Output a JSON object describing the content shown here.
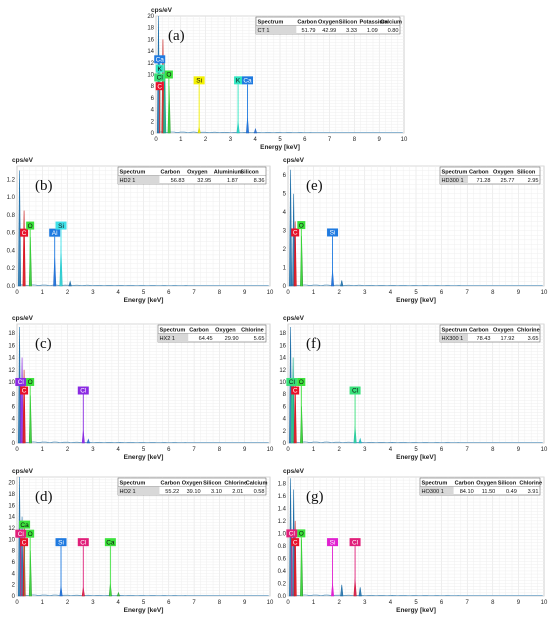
{
  "chart_data": [
    {
      "type": "line",
      "panel_label": "(a)",
      "ylabel": "cps/eV",
      "xlabel": "Energy [keV]",
      "ylim": [
        0,
        20
      ],
      "yticks": [
        "20",
        "18",
        "16",
        "14",
        "12",
        "10",
        "8",
        "6",
        "4",
        "2",
        "0"
      ],
      "xlim": [
        0,
        10
      ],
      "xticks": [
        "0",
        "1",
        "2",
        "3",
        "4",
        "5",
        "6",
        "7",
        "8",
        "9",
        "10"
      ],
      "spectrum_table": {
        "headers": [
          "Spectrum",
          "Carbon",
          "Oxygen",
          "Silicon",
          "Potassium",
          "Calcium"
        ],
        "row": [
          "CT 1",
          "51.79",
          "42.99",
          "3.33",
          "1.09",
          "0.80"
        ]
      },
      "element_labels": [
        {
          "text": "Ca",
          "x": 0.15,
          "y": 12.6,
          "color": "#1f7ae0"
        },
        {
          "text": "K",
          "x": 0.15,
          "y": 11.0,
          "color": "#2ee6c0"
        },
        {
          "text": "Cl",
          "x": 0.15,
          "y": 9.5,
          "color": "#39e07a"
        },
        {
          "text": "C",
          "x": 0.15,
          "y": 8.0,
          "color": "#e8102a"
        },
        {
          "text": "O",
          "x": 0.52,
          "y": 10.0,
          "color": "#3ce13c"
        },
        {
          "text": "Si",
          "x": 1.74,
          "y": 9.0,
          "color": "#f2f000"
        },
        {
          "text": "K",
          "x": 3.31,
          "y": 9.0,
          "color": "#2ee6c0"
        },
        {
          "text": "Ca",
          "x": 3.69,
          "y": 9.0,
          "color": "#1f7ae0"
        }
      ],
      "peaks": [
        {
          "x": 0.1,
          "y": 20.0,
          "color": "#1f6fa8"
        },
        {
          "x": 0.28,
          "y": 16.0,
          "color": "#c22"
        },
        {
          "x": 0.35,
          "y": 12.0,
          "color": "#1a8"
        },
        {
          "x": 0.53,
          "y": 8.0,
          "color": "#3a3"
        },
        {
          "x": 1.74,
          "y": 1.0,
          "color": "#cc0"
        },
        {
          "x": 3.31,
          "y": 2.0,
          "color": "#2bb"
        },
        {
          "x": 3.69,
          "y": 2.6,
          "color": "#2769c9"
        },
        {
          "x": 4.01,
          "y": 0.7,
          "color": "#2769c9"
        }
      ]
    },
    {
      "type": "line",
      "panel_label": "(b)",
      "ylabel": "cps/eV",
      "xlabel": "Energy [keV]",
      "ylim": [
        0,
        1.35
      ],
      "yticks": [
        "1.2",
        "1.0",
        "0.8",
        "0.6",
        "0.4",
        "0.2",
        "0.0"
      ],
      "ytick_values": [
        1.2,
        1.0,
        0.8,
        0.6,
        0.4,
        0.2,
        0.0
      ],
      "xlim": [
        0,
        10
      ],
      "xticks": [
        "0",
        "1",
        "2",
        "3",
        "4",
        "5",
        "6",
        "7",
        "8",
        "9",
        "10"
      ],
      "spectrum_table": {
        "headers": [
          "Spectrum",
          "Carbon",
          "Oxygen",
          "Aluminium",
          "Silicon"
        ],
        "row": [
          "HD2 1",
          "56.83",
          "32.95",
          "1.87",
          "8.36"
        ]
      },
      "element_labels": [
        {
          "text": "C",
          "x": 0.28,
          "y": 0.6,
          "color": "#e8102a"
        },
        {
          "text": "O",
          "x": 0.52,
          "y": 0.68,
          "color": "#3ce13c"
        },
        {
          "text": "Al",
          "x": 1.49,
          "y": 0.6,
          "color": "#1f7ae0"
        },
        {
          "text": "Si",
          "x": 1.74,
          "y": 0.68,
          "color": "#3fe0e8"
        }
      ],
      "peaks": [
        {
          "x": 0.1,
          "y": 1.3,
          "color": "#1f6fa8"
        },
        {
          "x": 0.28,
          "y": 0.85,
          "color": "#c22"
        },
        {
          "x": 0.53,
          "y": 0.55,
          "color": "#3a3"
        },
        {
          "x": 1.49,
          "y": 0.32,
          "color": "#2769c9"
        },
        {
          "x": 1.74,
          "y": 0.45,
          "color": "#2bb"
        },
        {
          "x": 2.1,
          "y": 0.05,
          "color": "#1f6fa8"
        }
      ]
    },
    {
      "type": "line",
      "panel_label": "(e)",
      "ylabel": "cps/eV",
      "xlabel": "Energy [keV]",
      "ylim": [
        0,
        6.5
      ],
      "yticks": [
        "6",
        "5",
        "4",
        "3",
        "2",
        "1",
        "0"
      ],
      "ytick_values": [
        6,
        5,
        4,
        3,
        2,
        1,
        0
      ],
      "xlim": [
        0,
        10
      ],
      "xticks": [
        "0",
        "1",
        "2",
        "3",
        "4",
        "5",
        "6",
        "7",
        "8",
        "9",
        "10"
      ],
      "spectrum_table": {
        "headers": [
          "Spectrum",
          "Carbon",
          "Oxygen",
          "Silicon"
        ],
        "row": [
          "HD300 1",
          "71.28",
          "25.77",
          "2.95"
        ]
      },
      "element_labels": [
        {
          "text": "C",
          "x": 0.28,
          "y": 2.9,
          "color": "#e8102a"
        },
        {
          "text": "O",
          "x": 0.52,
          "y": 3.3,
          "color": "#3ce13c"
        },
        {
          "text": "Si",
          "x": 1.74,
          "y": 2.9,
          "color": "#1f7ae0"
        }
      ],
      "peaks": [
        {
          "x": 0.1,
          "y": 6.3,
          "color": "#1f6fa8"
        },
        {
          "x": 0.22,
          "y": 5.0,
          "color": "#1f6fa8"
        },
        {
          "x": 0.28,
          "y": 3.5,
          "color": "#c22"
        },
        {
          "x": 0.53,
          "y": 2.7,
          "color": "#3a3"
        },
        {
          "x": 1.74,
          "y": 0.85,
          "color": "#2769c9"
        },
        {
          "x": 2.1,
          "y": 0.3,
          "color": "#1f6fa8"
        }
      ]
    },
    {
      "type": "line",
      "panel_label": "(c)",
      "ylabel": "cps/eV",
      "xlabel": "Energy [keV]",
      "ylim": [
        0,
        19.5
      ],
      "yticks": [
        "18",
        "16",
        "14",
        "12",
        "10",
        "8",
        "6",
        "4",
        "2",
        "0"
      ],
      "ytick_values": [
        18,
        16,
        14,
        12,
        10,
        8,
        6,
        4,
        2,
        0
      ],
      "xlim": [
        0,
        10
      ],
      "xticks": [
        "0",
        "1",
        "2",
        "3",
        "4",
        "5",
        "6",
        "7",
        "8",
        "9",
        "10"
      ],
      "spectrum_table": {
        "headers": [
          "Spectrum",
          "Carbon",
          "Oxygen",
          "Chlorine"
        ],
        "row": [
          "HX2 1",
          "64.45",
          "29.90",
          "5.65"
        ]
      },
      "element_labels": [
        {
          "text": "Cl",
          "x": 0.15,
          "y": 10.0,
          "color": "#8a2be2"
        },
        {
          "text": "C",
          "x": 0.28,
          "y": 8.6,
          "color": "#e8102a"
        },
        {
          "text": "O",
          "x": 0.52,
          "y": 10.0,
          "color": "#3ce13c"
        },
        {
          "text": "Cl",
          "x": 2.62,
          "y": 8.6,
          "color": "#8a2be2"
        }
      ],
      "peaks": [
        {
          "x": 0.1,
          "y": 19.0,
          "color": "#1f6fa8"
        },
        {
          "x": 0.2,
          "y": 14.0,
          "color": "#8a2be2"
        },
        {
          "x": 0.28,
          "y": 12.0,
          "color": "#c22"
        },
        {
          "x": 0.53,
          "y": 7.8,
          "color": "#3a3"
        },
        {
          "x": 2.62,
          "y": 2.0,
          "color": "#8a2be2"
        },
        {
          "x": 2.82,
          "y": 0.6,
          "color": "#2769c9"
        }
      ]
    },
    {
      "type": "line",
      "panel_label": "(f)",
      "ylabel": "cps/eV",
      "xlabel": "Energy [keV]",
      "ylim": [
        0,
        19.5
      ],
      "yticks": [
        "18",
        "16",
        "14",
        "12",
        "10",
        "8",
        "6",
        "4",
        "2",
        "0"
      ],
      "ytick_values": [
        18,
        16,
        14,
        12,
        10,
        8,
        6,
        4,
        2,
        0
      ],
      "xlim": [
        0,
        10
      ],
      "xticks": [
        "0",
        "1",
        "2",
        "3",
        "4",
        "5",
        "6",
        "7",
        "8",
        "9",
        "10"
      ],
      "spectrum_table": {
        "headers": [
          "Spectrum",
          "Carbon",
          "Oxygen",
          "Chlorine"
        ],
        "row": [
          "HX300 1",
          "78.43",
          "17.92",
          "3.65"
        ]
      },
      "element_labels": [
        {
          "text": "Cl",
          "x": 0.15,
          "y": 10.0,
          "color": "#39e07a"
        },
        {
          "text": "C",
          "x": 0.28,
          "y": 8.6,
          "color": "#e8102a"
        },
        {
          "text": "O",
          "x": 0.52,
          "y": 10.0,
          "color": "#3ce13c"
        },
        {
          "text": "Cl",
          "x": 2.62,
          "y": 8.6,
          "color": "#39e07a"
        }
      ],
      "peaks": [
        {
          "x": 0.1,
          "y": 19.0,
          "color": "#1f6fa8"
        },
        {
          "x": 0.2,
          "y": 14.0,
          "color": "#1a8"
        },
        {
          "x": 0.28,
          "y": 10.0,
          "color": "#c22"
        },
        {
          "x": 0.53,
          "y": 6.0,
          "color": "#3a3"
        },
        {
          "x": 2.62,
          "y": 2.8,
          "color": "#2bb"
        },
        {
          "x": 2.82,
          "y": 0.7,
          "color": "#2bb"
        }
      ]
    },
    {
      "type": "line",
      "panel_label": "(d)",
      "ylabel": "cps/eV",
      "xlabel": "Energy [keV]",
      "ylim": [
        0,
        21
      ],
      "yticks": [
        "20",
        "18",
        "16",
        "14",
        "12",
        "10",
        "8",
        "6",
        "4",
        "2",
        "0"
      ],
      "ytick_values": [
        20,
        18,
        16,
        14,
        12,
        10,
        8,
        6,
        4,
        2,
        0
      ],
      "xlim": [
        0,
        10
      ],
      "xticks": [
        "0",
        "1",
        "2",
        "3",
        "4",
        "5",
        "6",
        "7",
        "8",
        "9",
        "10"
      ],
      "spectrum_table": {
        "headers": [
          "Spectrum",
          "Carbon",
          "Oxygen",
          "Silicon",
          "Chlorine",
          "Calcium"
        ],
        "row": [
          "HO2 1",
          "55.22",
          "39.10",
          "3.10",
          "2.01",
          "0.58"
        ]
      },
      "element_labels": [
        {
          "text": "Ca",
          "x": 0.3,
          "y": 12.6,
          "color": "#3ce13c"
        },
        {
          "text": "Cl",
          "x": 0.15,
          "y": 11.0,
          "color": "#e0207a"
        },
        {
          "text": "C",
          "x": 0.28,
          "y": 9.5,
          "color": "#e8102a"
        },
        {
          "text": "O",
          "x": 0.52,
          "y": 11.0,
          "color": "#3ce13c"
        },
        {
          "text": "Si",
          "x": 1.74,
          "y": 9.5,
          "color": "#1f7ae0"
        },
        {
          "text": "Cl",
          "x": 2.62,
          "y": 9.5,
          "color": "#e0207a"
        },
        {
          "text": "Ca",
          "x": 3.69,
          "y": 9.5,
          "color": "#3ce13c"
        }
      ],
      "peaks": [
        {
          "x": 0.1,
          "y": 21.0,
          "color": "#1f6fa8"
        },
        {
          "x": 0.2,
          "y": 14.0,
          "color": "#1f6fa8"
        },
        {
          "x": 0.28,
          "y": 12.0,
          "color": "#c22"
        },
        {
          "x": 0.53,
          "y": 8.0,
          "color": "#3a3"
        },
        {
          "x": 1.74,
          "y": 1.8,
          "color": "#2769c9"
        },
        {
          "x": 2.62,
          "y": 1.5,
          "color": "#c22"
        },
        {
          "x": 3.69,
          "y": 2.2,
          "color": "#3a3"
        },
        {
          "x": 4.01,
          "y": 0.6,
          "color": "#3a3"
        }
      ]
    },
    {
      "type": "line",
      "panel_label": "(g)",
      "ylabel": "cps/eV",
      "xlabel": "Energy [keV]",
      "ylim": [
        0,
        1.9
      ],
      "yticks": [
        "1.8",
        "1.6",
        "1.4",
        "1.2",
        "1.0",
        "0.8",
        "0.6",
        "0.4",
        "0.2",
        "0.0"
      ],
      "ytick_values": [
        1.8,
        1.6,
        1.4,
        1.2,
        1.0,
        0.8,
        0.6,
        0.4,
        0.2,
        0.0
      ],
      "xlim": [
        0,
        10
      ],
      "xticks": [
        "0",
        "1",
        "2",
        "3",
        "4",
        "5",
        "6",
        "7",
        "8",
        "9",
        "10"
      ],
      "spectrum_table": {
        "headers": [
          "Spectrum",
          "Carbon",
          "Oxygen",
          "Silicon",
          "Chlorine"
        ],
        "row": [
          "HO300 1",
          "84.10",
          "11.50",
          "0.49",
          "3.91"
        ]
      },
      "element_labels": [
        {
          "text": "Cl",
          "x": 0.15,
          "y": 1.0,
          "color": "#e0207a"
        },
        {
          "text": "C",
          "x": 0.28,
          "y": 0.86,
          "color": "#e8102a"
        },
        {
          "text": "O",
          "x": 0.52,
          "y": 1.0,
          "color": "#3ce13c"
        },
        {
          "text": "Si",
          "x": 1.74,
          "y": 0.86,
          "color": "#e020d0"
        },
        {
          "text": "Cl",
          "x": 2.62,
          "y": 0.86,
          "color": "#e0207a"
        }
      ],
      "peaks": [
        {
          "x": 0.1,
          "y": 1.88,
          "color": "#1f6fa8"
        },
        {
          "x": 0.22,
          "y": 1.7,
          "color": "#1f6fa8"
        },
        {
          "x": 0.28,
          "y": 1.2,
          "color": "#c22"
        },
        {
          "x": 0.53,
          "y": 0.9,
          "color": "#3a3"
        },
        {
          "x": 1.74,
          "y": 0.2,
          "color": "#e020d0"
        },
        {
          "x": 2.1,
          "y": 0.18,
          "color": "#1f6fa8"
        },
        {
          "x": 2.62,
          "y": 0.28,
          "color": "#c22"
        },
        {
          "x": 2.82,
          "y": 0.14,
          "color": "#1f6fa8"
        }
      ]
    }
  ]
}
